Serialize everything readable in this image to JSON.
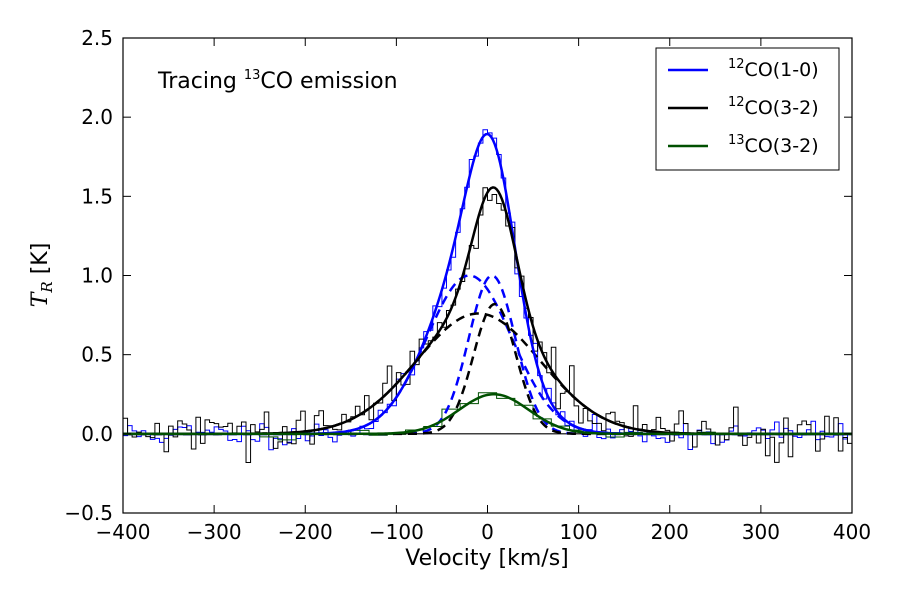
{
  "chart_data": {
    "type": "line",
    "title": "",
    "annotation": {
      "prefix": "Tracing ",
      "sup": "13",
      "suffix": "CO emission"
    },
    "xlabel": "Velocity [km/s]",
    "ylabel": {
      "main": "T",
      "sub": "R",
      "unit": " [K]"
    },
    "xlim": [
      -400,
      400
    ],
    "ylim": [
      -0.5,
      2.5
    ],
    "xticks": [
      -400,
      -300,
      -200,
      -100,
      0,
      100,
      200,
      300,
      400
    ],
    "xtick_labels": [
      "−400",
      "−300",
      "−200",
      "−100",
      "0",
      "100",
      "200",
      "300",
      "400"
    ],
    "yticks": [
      -0.5,
      0.0,
      0.5,
      1.0,
      1.5,
      2.0,
      2.5
    ],
    "ytick_labels": [
      "−0.5",
      "0.0",
      "0.5",
      "1.0",
      "1.5",
      "2.0",
      "2.5"
    ],
    "grid": false,
    "legend_position": "top-right",
    "zero_line": 0,
    "legend": [
      {
        "sup": "12",
        "label": "CO(1-0)",
        "color": "#0000ff"
      },
      {
        "sup": "12",
        "label": "CO(3-2)",
        "color": "#000000"
      },
      {
        "sup": "13",
        "label": "CO(3-2)",
        "color": "#005000"
      }
    ],
    "series": [
      {
        "name": "12CO(1-0) fit",
        "kind": "total_fit",
        "color": "#0000ff",
        "components": [
          {
            "amp": 1.0,
            "center": -20,
            "fwhm": 110
          },
          {
            "amp": 1.0,
            "center": 5,
            "fwhm": 60
          }
        ]
      },
      {
        "name": "12CO(3-2) fit",
        "kind": "total_fit",
        "color": "#000000",
        "components": [
          {
            "amp": 0.76,
            "center": -10,
            "fwhm": 160
          },
          {
            "amp": 0.82,
            "center": 8,
            "fwhm": 55
          }
        ]
      },
      {
        "name": "13CO(3-2) fit",
        "kind": "total_fit",
        "color": "#005000",
        "components": [
          {
            "amp": 0.25,
            "center": 7,
            "fwhm": 90
          }
        ]
      },
      {
        "name": "12CO(1-0) component 1",
        "kind": "component",
        "color": "#0000ff",
        "components": [
          {
            "amp": 1.0,
            "center": -20,
            "fwhm": 110
          }
        ]
      },
      {
        "name": "12CO(1-0) component 2",
        "kind": "component",
        "color": "#0000ff",
        "components": [
          {
            "amp": 1.0,
            "center": 5,
            "fwhm": 60
          }
        ]
      },
      {
        "name": "12CO(3-2) component 1",
        "kind": "component",
        "color": "#000000",
        "components": [
          {
            "amp": 0.76,
            "center": -10,
            "fwhm": 160
          }
        ]
      },
      {
        "name": "12CO(3-2) component 2",
        "kind": "component",
        "color": "#000000",
        "components": [
          {
            "amp": 0.82,
            "center": 8,
            "fwhm": 55
          }
        ]
      },
      {
        "name": "12CO(1-0) spectrum",
        "kind": "spectrum",
        "color": "#0000ff",
        "channel_width": 5,
        "noise": 0.04,
        "seed": 11,
        "model": "12CO(1-0) fit"
      },
      {
        "name": "12CO(3-2) spectrum",
        "kind": "spectrum",
        "color": "#000000",
        "channel_width": 5,
        "noise": 0.07,
        "seed": 29,
        "model": "12CO(3-2) fit"
      },
      {
        "name": "13CO(3-2) spectrum",
        "kind": "spectrum",
        "color": "#005000",
        "channel_width": 20,
        "noise": 0.012,
        "seed": 47,
        "model": "13CO(3-2) fit",
        "vrange": [
          -250,
          250
        ]
      }
    ]
  }
}
